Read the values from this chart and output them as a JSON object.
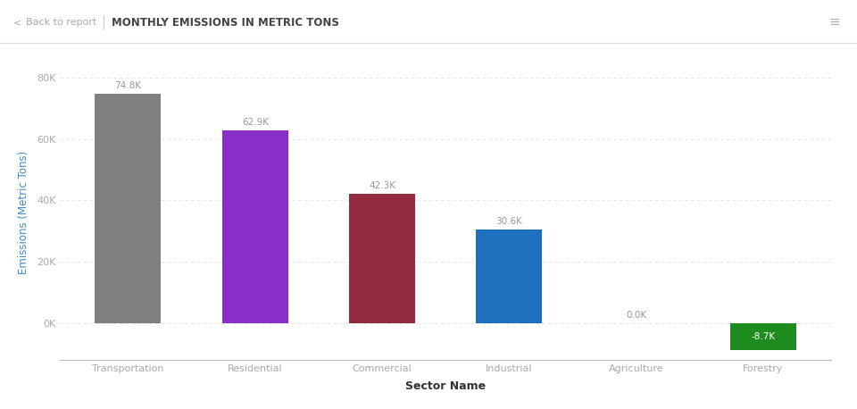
{
  "categories": [
    "Transportation",
    "Residential",
    "Commercial",
    "Industrial",
    "Agriculture",
    "Forestry"
  ],
  "values": [
    74800,
    62900,
    42300,
    30600,
    0,
    -8700
  ],
  "bar_colors": [
    "#808080",
    "#8B2FC9",
    "#922B3E",
    "#1F6FBF",
    "#b0b000",
    "#1E8C1E"
  ],
  "label_texts": [
    "74.8K",
    "62.9K",
    "42.3K",
    "30.6K",
    "0.0K",
    "-8.7K"
  ],
  "title": "MONTHLY EMISSIONS IN METRIC TONS",
  "xlabel": "Sector Name",
  "ylabel": "Emissions (Metric Tons)",
  "ylim": [
    -12000,
    84000
  ],
  "yticks": [
    0,
    20000,
    40000,
    60000,
    80000
  ],
  "ytick_labels": [
    "0K",
    "20K",
    "40K",
    "60K",
    "80K"
  ],
  "background_color": "#ffffff",
  "label_color": "#999999",
  "axis_tick_color": "#aaaaaa",
  "xticklabel_color": "#aaaaaa",
  "ylabel_color": "#4488BB",
  "xlabel_color": "#333333",
  "title_color": "#444444",
  "header_back_color": "#aaaaaa",
  "grid_color": "#e0e0e0"
}
